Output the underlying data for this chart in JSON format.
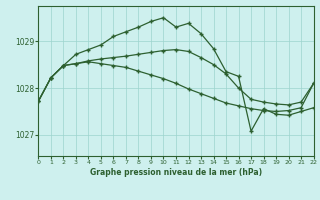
{
  "title": "Graphe pression niveau de la mer (hPa)",
  "background_color": "#cef0ee",
  "grid_color": "#9dd4ce",
  "line_color": "#2d6030",
  "xlim": [
    0,
    22
  ],
  "ylim": [
    1026.55,
    1029.75
  ],
  "yticks": [
    1027,
    1028,
    1029
  ],
  "xticks": [
    0,
    1,
    2,
    3,
    4,
    5,
    6,
    7,
    8,
    9,
    10,
    11,
    12,
    13,
    14,
    15,
    16,
    17,
    18,
    19,
    20,
    21,
    22
  ],
  "s1x": [
    0,
    1,
    2,
    3,
    4,
    5,
    6,
    7,
    8,
    9,
    10,
    11,
    12,
    13,
    14,
    15,
    16,
    17,
    18,
    19,
    20,
    21,
    22
  ],
  "s1y": [
    1027.72,
    1028.22,
    1028.48,
    1028.52,
    1028.56,
    1028.52,
    1028.48,
    1028.44,
    1028.36,
    1028.28,
    1028.2,
    1028.1,
    1027.98,
    1027.88,
    1027.78,
    1027.68,
    1027.62,
    1027.56,
    1027.52,
    1027.5,
    1027.52,
    1027.58,
    1028.1
  ],
  "s2x": [
    0,
    1,
    2,
    3,
    4,
    5,
    6,
    7,
    8,
    9,
    10,
    11,
    12,
    13,
    14,
    15,
    16,
    17,
    18,
    19,
    20,
    21,
    22
  ],
  "s2y": [
    1027.72,
    1028.22,
    1028.48,
    1028.52,
    1028.58,
    1028.62,
    1028.65,
    1028.68,
    1028.72,
    1028.76,
    1028.8,
    1028.82,
    1028.78,
    1028.65,
    1028.5,
    1028.3,
    1028.0,
    1027.76,
    1027.7,
    1027.66,
    1027.64,
    1027.7,
    1028.1
  ],
  "s3x": [
    0,
    1,
    2,
    3,
    4,
    5,
    6,
    7,
    8,
    9,
    10,
    11,
    12,
    13,
    14,
    15,
    16,
    17,
    18,
    19,
    20,
    21,
    22
  ],
  "s3y": [
    1027.72,
    1028.22,
    1028.48,
    1028.72,
    1028.82,
    1028.92,
    1029.1,
    1029.2,
    1029.3,
    1029.42,
    1029.5,
    1029.3,
    1029.38,
    1029.16,
    1028.84,
    1028.35,
    1028.25,
    1027.08,
    1027.56,
    1027.44,
    1027.42,
    1027.5,
    1027.58
  ]
}
